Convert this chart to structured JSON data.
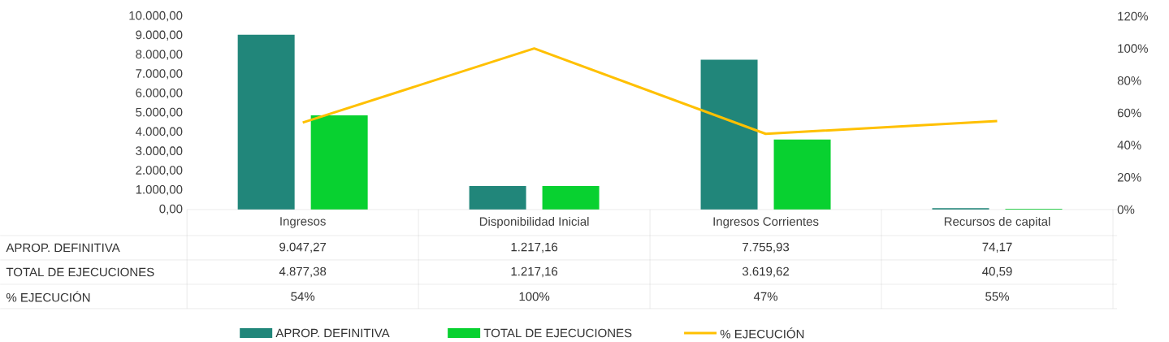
{
  "chart_data": {
    "type": "bar",
    "categories": [
      "Ingresos",
      "Disponibilidad Inicial",
      "Ingresos Corrientes",
      "Recursos de capital"
    ],
    "series": [
      {
        "name": "APROP. DEFINITIVA",
        "color": "#21867a",
        "values": [
          9047.27,
          1217.16,
          7755.93,
          74.17
        ],
        "value_labels": [
          "9.047,27",
          "1.217,16",
          "7.755,93",
          "74,17"
        ]
      },
      {
        "name": "TOTAL DE EJECUCIONES",
        "color": "#08d130",
        "values": [
          4877.38,
          1217.16,
          3619.62,
          40.59
        ],
        "value_labels": [
          "4.877,38",
          "1.217,16",
          "3.619,62",
          "40,59"
        ]
      },
      {
        "name": "% EJECUCIÓN",
        "type": "line",
        "axis": "y2",
        "color": "#ffc000",
        "values": [
          54,
          100,
          47,
          55
        ],
        "value_labels": [
          "54%",
          "100%",
          "47%",
          "55%"
        ]
      }
    ],
    "ylim": [
      0,
      10000
    ],
    "yticks": [
      {
        "value": 0,
        "label": "0,00"
      },
      {
        "value": 1000,
        "label": "1.000,00"
      },
      {
        "value": 2000,
        "label": "2.000,00"
      },
      {
        "value": 3000,
        "label": "3.000,00"
      },
      {
        "value": 4000,
        "label": "4.000,00"
      },
      {
        "value": 5000,
        "label": "5.000,00"
      },
      {
        "value": 6000,
        "label": "6.000,00"
      },
      {
        "value": 7000,
        "label": "7.000,00"
      },
      {
        "value": 8000,
        "label": "8.000,00"
      },
      {
        "value": 9000,
        "label": "9.000,00"
      },
      {
        "value": 10000,
        "label": "10.000,00"
      }
    ],
    "y2lim": [
      0,
      120
    ],
    "y2ticks": [
      {
        "value": 0,
        "label": "0%"
      },
      {
        "value": 20,
        "label": "20%"
      },
      {
        "value": 40,
        "label": "40%"
      },
      {
        "value": 60,
        "label": "60%"
      },
      {
        "value": 80,
        "label": "80%"
      },
      {
        "value": 100,
        "label": "100%"
      },
      {
        "value": 120,
        "label": "120%"
      }
    ],
    "legend": "bottom"
  }
}
